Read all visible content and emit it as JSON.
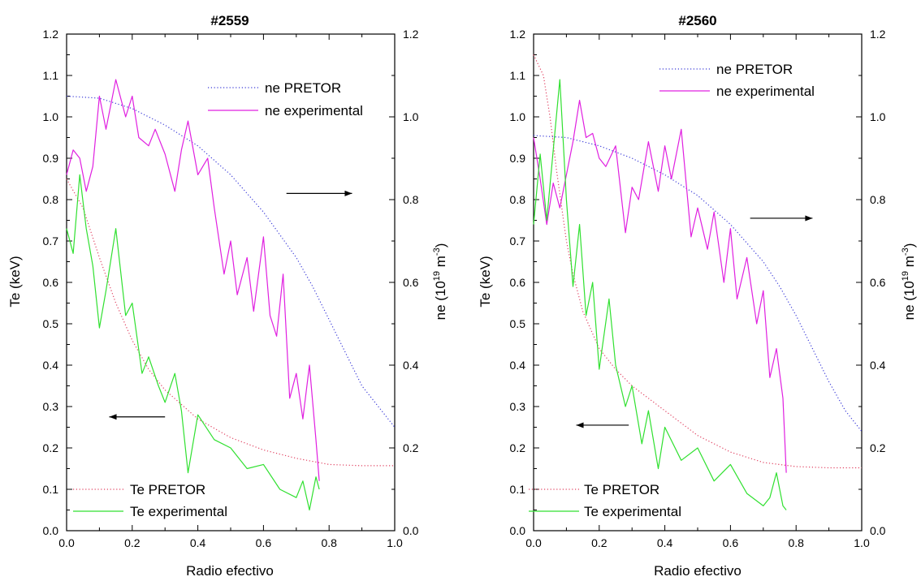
{
  "chart_data": [
    {
      "type": "line",
      "title": "#2559",
      "xlabel": "Radio efectivo",
      "ylabel": "Te (keV)",
      "y2label": "ne (10",
      "y2label_sup1": "19",
      "y2label_mid": " m",
      "y2label_sup2": "-3",
      "y2label_end": ")",
      "xlim": [
        0,
        1.0
      ],
      "ylim": [
        0,
        1.2
      ],
      "y2lim": [
        0,
        1.2
      ],
      "x_ticks": [
        "0.0",
        "0.2",
        "0.4",
        "0.6",
        "0.8",
        "1.0"
      ],
      "y_ticks": [
        "0.0",
        "0.1",
        "0.2",
        "0.3",
        "0.4",
        "0.5",
        "0.6",
        "0.7",
        "0.8",
        "0.9",
        "1.0",
        "1.1",
        "1.2"
      ],
      "y2_ticks": [
        "0.0",
        "0.2",
        "0.4",
        "0.6",
        "0.8",
        "1.0",
        "1.2"
      ],
      "grid": false,
      "legend_top": "top-right",
      "legend_bottom": "bottom-left",
      "arrows": [
        {
          "from": [
            0.67,
            0.815
          ],
          "to": [
            0.87,
            0.815
          ]
        },
        {
          "from": [
            0.3,
            0.275
          ],
          "to": [
            0.13,
            0.275
          ]
        }
      ],
      "series": [
        {
          "name": "ne PRETOR",
          "axis": "right",
          "style": "dotted",
          "color": "#3b3bd8",
          "x": [
            0,
            0.1,
            0.2,
            0.3,
            0.4,
            0.5,
            0.6,
            0.7,
            0.75,
            0.8,
            0.85,
            0.9,
            0.95,
            1.0
          ],
          "y": [
            1.05,
            1.045,
            1.02,
            0.98,
            0.93,
            0.86,
            0.77,
            0.66,
            0.59,
            0.51,
            0.43,
            0.35,
            0.3,
            0.25
          ]
        },
        {
          "name": "ne experimental",
          "axis": "right",
          "style": "solid",
          "color": "#e020e0",
          "x": [
            0,
            0.02,
            0.04,
            0.06,
            0.08,
            0.1,
            0.12,
            0.15,
            0.18,
            0.2,
            0.22,
            0.25,
            0.27,
            0.3,
            0.33,
            0.35,
            0.37,
            0.4,
            0.43,
            0.45,
            0.48,
            0.5,
            0.52,
            0.55,
            0.57,
            0.6,
            0.62,
            0.64,
            0.66,
            0.68,
            0.7,
            0.72,
            0.74,
            0.76,
            0.77
          ],
          "y": [
            0.86,
            0.92,
            0.9,
            0.82,
            0.88,
            1.05,
            0.97,
            1.09,
            1.0,
            1.05,
            0.95,
            0.93,
            0.97,
            0.91,
            0.82,
            0.92,
            0.99,
            0.86,
            0.9,
            0.78,
            0.62,
            0.7,
            0.57,
            0.66,
            0.53,
            0.71,
            0.52,
            0.47,
            0.62,
            0.32,
            0.38,
            0.27,
            0.4,
            0.22,
            0.12
          ]
        },
        {
          "name": "Te PRETOR",
          "axis": "left",
          "style": "dotted",
          "color": "#e04060",
          "x": [
            0,
            0.05,
            0.1,
            0.15,
            0.2,
            0.25,
            0.3,
            0.4,
            0.5,
            0.6,
            0.7,
            0.8,
            0.9,
            1.0
          ],
          "y": [
            0.85,
            0.78,
            0.66,
            0.55,
            0.46,
            0.39,
            0.34,
            0.27,
            0.225,
            0.195,
            0.175,
            0.16,
            0.157,
            0.157
          ]
        },
        {
          "name": "Te experimental",
          "axis": "left",
          "style": "solid",
          "color": "#30e030",
          "x": [
            0,
            0.02,
            0.04,
            0.06,
            0.08,
            0.1,
            0.12,
            0.15,
            0.18,
            0.2,
            0.23,
            0.25,
            0.28,
            0.3,
            0.33,
            0.35,
            0.37,
            0.4,
            0.45,
            0.5,
            0.55,
            0.6,
            0.65,
            0.7,
            0.72,
            0.74,
            0.76,
            0.77
          ],
          "y": [
            0.73,
            0.67,
            0.86,
            0.73,
            0.64,
            0.49,
            0.58,
            0.73,
            0.52,
            0.55,
            0.38,
            0.42,
            0.35,
            0.31,
            0.38,
            0.29,
            0.14,
            0.28,
            0.22,
            0.2,
            0.15,
            0.16,
            0.1,
            0.08,
            0.12,
            0.05,
            0.13,
            0.1
          ]
        }
      ]
    },
    {
      "type": "line",
      "title": "#2560",
      "xlabel": "Radio efectivo",
      "ylabel": "Te (keV)",
      "y2label": "ne (10",
      "y2label_sup1": "19",
      "y2label_mid": " m",
      "y2label_sup2": "-3",
      "y2label_end": ")",
      "xlim": [
        0,
        1.0
      ],
      "ylim": [
        0,
        1.2
      ],
      "y2lim": [
        0,
        1.2
      ],
      "x_ticks": [
        "0.0",
        "0.2",
        "0.4",
        "0.6",
        "0.8",
        "1.0"
      ],
      "y_ticks": [
        "0.0",
        "0.1",
        "0.2",
        "0.3",
        "0.4",
        "0.5",
        "0.6",
        "0.7",
        "0.8",
        "0.9",
        "1.0",
        "1.1",
        "1.2"
      ],
      "y2_ticks": [
        "0.0",
        "0.2",
        "0.4",
        "0.6",
        "0.8",
        "1.0",
        "1.2"
      ],
      "grid": false,
      "legend_top": "top-right",
      "legend_bottom": "bottom-left",
      "arrows": [
        {
          "from": [
            0.66,
            0.755
          ],
          "to": [
            0.85,
            0.755
          ]
        },
        {
          "from": [
            0.29,
            0.255
          ],
          "to": [
            0.13,
            0.255
          ]
        }
      ],
      "series": [
        {
          "name": "ne PRETOR",
          "axis": "right",
          "style": "dotted",
          "color": "#3b3bd8",
          "x": [
            0,
            0.1,
            0.2,
            0.3,
            0.4,
            0.5,
            0.6,
            0.7,
            0.75,
            0.8,
            0.85,
            0.9,
            0.95,
            1.0
          ],
          "y": [
            0.955,
            0.95,
            0.93,
            0.9,
            0.86,
            0.81,
            0.74,
            0.65,
            0.59,
            0.52,
            0.44,
            0.36,
            0.29,
            0.24
          ]
        },
        {
          "name": "ne experimental",
          "axis": "right",
          "style": "solid",
          "color": "#e020e0",
          "x": [
            0,
            0.02,
            0.04,
            0.06,
            0.08,
            0.1,
            0.12,
            0.14,
            0.16,
            0.18,
            0.2,
            0.22,
            0.25,
            0.28,
            0.3,
            0.32,
            0.35,
            0.38,
            0.4,
            0.42,
            0.45,
            0.48,
            0.5,
            0.53,
            0.55,
            0.58,
            0.6,
            0.62,
            0.65,
            0.68,
            0.7,
            0.72,
            0.74,
            0.76,
            0.77
          ],
          "y": [
            0.95,
            0.85,
            0.74,
            0.84,
            0.78,
            0.86,
            0.94,
            1.04,
            0.95,
            0.96,
            0.9,
            0.88,
            0.93,
            0.72,
            0.83,
            0.8,
            0.94,
            0.82,
            0.93,
            0.85,
            0.97,
            0.71,
            0.78,
            0.68,
            0.77,
            0.6,
            0.73,
            0.56,
            0.66,
            0.5,
            0.58,
            0.37,
            0.44,
            0.32,
            0.14
          ]
        },
        {
          "name": "Te PRETOR",
          "axis": "left",
          "style": "dotted",
          "color": "#e04060",
          "x": [
            0,
            0.03,
            0.05,
            0.07,
            0.1,
            0.12,
            0.15,
            0.2,
            0.25,
            0.3,
            0.4,
            0.5,
            0.6,
            0.7,
            0.8,
            0.9,
            1.0
          ],
          "y": [
            1.15,
            1.1,
            1.0,
            0.87,
            0.7,
            0.62,
            0.53,
            0.44,
            0.39,
            0.35,
            0.29,
            0.23,
            0.19,
            0.165,
            0.155,
            0.152,
            0.152
          ]
        },
        {
          "name": "Te experimental",
          "axis": "left",
          "style": "solid",
          "color": "#30e030",
          "x": [
            0,
            0.02,
            0.04,
            0.06,
            0.08,
            0.1,
            0.12,
            0.14,
            0.16,
            0.18,
            0.2,
            0.23,
            0.25,
            0.28,
            0.3,
            0.33,
            0.35,
            0.38,
            0.4,
            0.45,
            0.5,
            0.55,
            0.6,
            0.65,
            0.7,
            0.72,
            0.74,
            0.76,
            0.77
          ],
          "y": [
            0.74,
            0.91,
            0.75,
            0.92,
            1.09,
            0.8,
            0.59,
            0.74,
            0.52,
            0.6,
            0.39,
            0.56,
            0.4,
            0.3,
            0.35,
            0.21,
            0.29,
            0.15,
            0.25,
            0.17,
            0.2,
            0.12,
            0.16,
            0.09,
            0.06,
            0.08,
            0.14,
            0.06,
            0.05
          ]
        }
      ]
    }
  ]
}
